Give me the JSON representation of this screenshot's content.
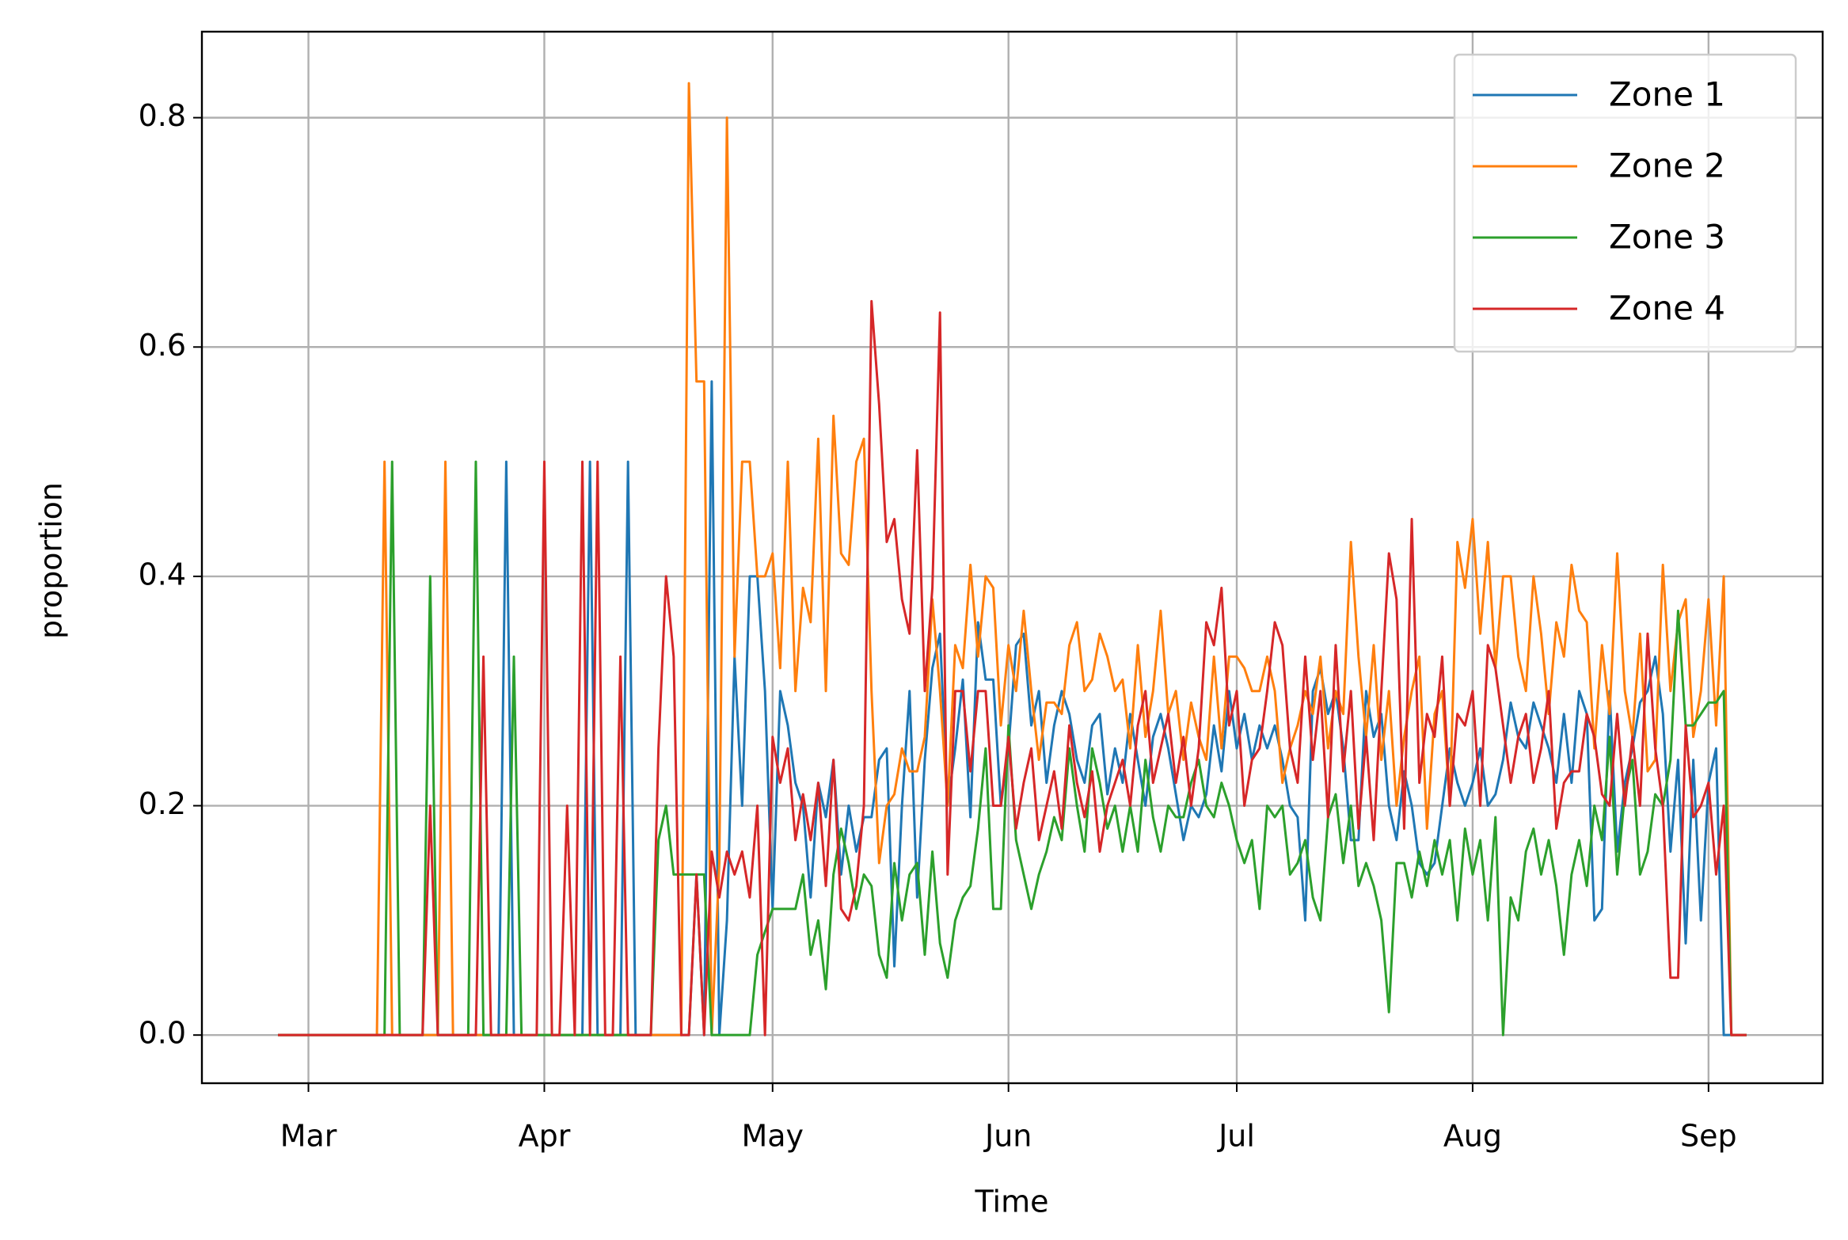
{
  "chart_data": {
    "type": "line",
    "xlabel": "Time",
    "ylabel": "proportion",
    "x": [
      -4,
      -3,
      -2,
      -1,
      0,
      1,
      2,
      3,
      4,
      5,
      6,
      7,
      8,
      9,
      10,
      11,
      12,
      13,
      14,
      15,
      16,
      17,
      18,
      19,
      20,
      21,
      22,
      23,
      24,
      25,
      26,
      27,
      28,
      29,
      30,
      31,
      32,
      33,
      34,
      35,
      36,
      37,
      38,
      39,
      40,
      41,
      42,
      43,
      44,
      45,
      46,
      47,
      48,
      49,
      50,
      51,
      52,
      53,
      54,
      55,
      56,
      57,
      58,
      59,
      60,
      61,
      62,
      63,
      64,
      65,
      66,
      67,
      68,
      69,
      70,
      71,
      72,
      73,
      74,
      75,
      76,
      77,
      78,
      79,
      80,
      81,
      82,
      83,
      84,
      85,
      86,
      87,
      88,
      89,
      90,
      91,
      92,
      93,
      94,
      95,
      96,
      97,
      98,
      99,
      100,
      101,
      102,
      103,
      104,
      105,
      106,
      107,
      108,
      109,
      110,
      111,
      112,
      113,
      114,
      115,
      116,
      117,
      118,
      119,
      120,
      121,
      122,
      123,
      124,
      125,
      126,
      127,
      128,
      129,
      130,
      131,
      132,
      133,
      134,
      135,
      136,
      137,
      138,
      139,
      140,
      141,
      142,
      143,
      144,
      145,
      146,
      147,
      148,
      149,
      150,
      151,
      152,
      153,
      154,
      155,
      156,
      157,
      158,
      159,
      160,
      161,
      162,
      163,
      164,
      165,
      166,
      167,
      168,
      169,
      170,
      171,
      172,
      173,
      174,
      175,
      176,
      177,
      178,
      179,
      180,
      181,
      182,
      183,
      184,
      185,
      186,
      187,
      188,
      189
    ],
    "series": [
      {
        "name": "Zone 1",
        "color": "#1f77b4",
        "values": [
          0,
          0,
          0,
          0,
          0,
          0,
          0,
          0,
          0,
          0,
          0,
          0,
          0,
          0,
          0,
          0,
          0,
          0,
          0,
          0,
          0,
          0,
          0,
          0,
          0,
          0,
          0,
          0,
          0,
          0,
          0.5,
          0,
          0,
          0,
          0,
          0,
          0,
          0,
          0,
          0,
          0,
          0.5,
          0,
          0,
          0,
          0,
          0.5,
          0,
          0,
          0,
          0,
          0,
          0,
          0,
          0,
          0.14,
          0,
          0.57,
          0,
          0.1,
          0.33,
          0.2,
          0.4,
          0.4,
          0.3,
          0.11,
          0.3,
          0.27,
          0.22,
          0.2,
          0.12,
          0.22,
          0.19,
          0.24,
          0.14,
          0.2,
          0.16,
          0.19,
          0.19,
          0.24,
          0.25,
          0.06,
          0.2,
          0.3,
          0.12,
          0.24,
          0.32,
          0.35,
          0.2,
          0.25,
          0.31,
          0.19,
          0.36,
          0.31,
          0.31,
          0.2,
          0.25,
          0.34,
          0.35,
          0.27,
          0.3,
          0.22,
          0.27,
          0.3,
          0.28,
          0.24,
          0.22,
          0.27,
          0.28,
          0.21,
          0.25,
          0.22,
          0.28,
          0.24,
          0.2,
          0.26,
          0.28,
          0.25,
          0.21,
          0.17,
          0.2,
          0.19,
          0.21,
          0.27,
          0.23,
          0.3,
          0.25,
          0.28,
          0.24,
          0.27,
          0.25,
          0.27,
          0.24,
          0.2,
          0.19,
          0.1,
          0.3,
          0.32,
          0.28,
          0.3,
          0.25,
          0.17,
          0.17,
          0.3,
          0.26,
          0.28,
          0.2,
          0.17,
          0.23,
          0.2,
          0.15,
          0.14,
          0.15,
          0.2,
          0.25,
          0.22,
          0.2,
          0.22,
          0.25,
          0.2,
          0.21,
          0.24,
          0.29,
          0.26,
          0.25,
          0.29,
          0.27,
          0.25,
          0.22,
          0.28,
          0.22,
          0.3,
          0.28,
          0.1,
          0.11,
          0.3,
          0.16,
          0.22,
          0.25,
          0.29,
          0.3,
          0.33,
          0.28,
          0.16,
          0.24,
          0.08,
          0.24,
          0.1,
          0.22,
          0.25,
          0,
          0,
          0,
          0
        ]
      },
      {
        "name": "Zone 2",
        "color": "#ff7f0e",
        "values": [
          0,
          0,
          0,
          0,
          0,
          0,
          0,
          0,
          0,
          0,
          0,
          0,
          0,
          0,
          0.5,
          0,
          0,
          0,
          0,
          0,
          0,
          0,
          0.5,
          0,
          0,
          0,
          0,
          0,
          0,
          0,
          0,
          0,
          0,
          0,
          0,
          0,
          0,
          0,
          0,
          0,
          0,
          0,
          0,
          0,
          0,
          0,
          0,
          0,
          0,
          0,
          0,
          0,
          0,
          0,
          0.83,
          0.57,
          0.57,
          0,
          0.15,
          0.8,
          0.33,
          0.5,
          0.5,
          0.4,
          0.4,
          0.42,
          0.32,
          0.5,
          0.3,
          0.39,
          0.36,
          0.52,
          0.3,
          0.54,
          0.42,
          0.41,
          0.5,
          0.52,
          0.3,
          0.15,
          0.2,
          0.21,
          0.25,
          0.23,
          0.23,
          0.26,
          0.38,
          0.3,
          0.2,
          0.34,
          0.32,
          0.41,
          0.33,
          0.4,
          0.39,
          0.27,
          0.34,
          0.3,
          0.37,
          0.3,
          0.24,
          0.29,
          0.29,
          0.28,
          0.34,
          0.36,
          0.3,
          0.31,
          0.35,
          0.33,
          0.3,
          0.31,
          0.25,
          0.34,
          0.26,
          0.3,
          0.37,
          0.28,
          0.3,
          0.24,
          0.29,
          0.26,
          0.24,
          0.33,
          0.25,
          0.33,
          0.33,
          0.32,
          0.3,
          0.3,
          0.33,
          0.3,
          0.22,
          0.25,
          0.27,
          0.3,
          0.28,
          0.33,
          0.25,
          0.3,
          0.28,
          0.43,
          0.33,
          0.26,
          0.34,
          0.24,
          0.3,
          0.2,
          0.26,
          0.3,
          0.33,
          0.18,
          0.28,
          0.3,
          0.2,
          0.43,
          0.39,
          0.45,
          0.35,
          0.43,
          0.32,
          0.4,
          0.4,
          0.33,
          0.3,
          0.4,
          0.35,
          0.28,
          0.36,
          0.33,
          0.41,
          0.37,
          0.36,
          0.25,
          0.34,
          0.28,
          0.42,
          0.3,
          0.26,
          0.35,
          0.23,
          0.24,
          0.41,
          0.3,
          0.36,
          0.38,
          0.26,
          0.3,
          0.38,
          0.27,
          0.4,
          0,
          0,
          0
        ]
      },
      {
        "name": "Zone 3",
        "color": "#2ca02c",
        "values": [
          0,
          0,
          0,
          0,
          0,
          0,
          0,
          0,
          0,
          0,
          0,
          0,
          0,
          0,
          0,
          0.5,
          0,
          0,
          0,
          0,
          0.4,
          0,
          0,
          0,
          0,
          0,
          0.5,
          0,
          0,
          0,
          0,
          0.33,
          0,
          0,
          0,
          0,
          0,
          0,
          0,
          0,
          0,
          0,
          0,
          0,
          0,
          0,
          0,
          0,
          0,
          0,
          0.17,
          0.2,
          0.14,
          0.14,
          0.14,
          0.14,
          0.14,
          0,
          0,
          0,
          0,
          0,
          0,
          0.07,
          0.09,
          0.11,
          0.11,
          0.11,
          0.11,
          0.14,
          0.07,
          0.1,
          0.04,
          0.14,
          0.18,
          0.15,
          0.11,
          0.14,
          0.13,
          0.07,
          0.05,
          0.15,
          0.1,
          0.14,
          0.15,
          0.07,
          0.16,
          0.08,
          0.05,
          0.1,
          0.12,
          0.13,
          0.18,
          0.25,
          0.11,
          0.11,
          0.27,
          0.17,
          0.14,
          0.11,
          0.14,
          0.16,
          0.19,
          0.17,
          0.25,
          0.2,
          0.16,
          0.25,
          0.22,
          0.18,
          0.2,
          0.16,
          0.2,
          0.16,
          0.24,
          0.19,
          0.16,
          0.2,
          0.19,
          0.19,
          0.22,
          0.24,
          0.2,
          0.19,
          0.22,
          0.2,
          0.17,
          0.15,
          0.17,
          0.11,
          0.2,
          0.19,
          0.2,
          0.14,
          0.15,
          0.17,
          0.12,
          0.1,
          0.19,
          0.21,
          0.15,
          0.2,
          0.13,
          0.15,
          0.13,
          0.1,
          0.02,
          0.15,
          0.15,
          0.12,
          0.16,
          0.13,
          0.17,
          0.14,
          0.17,
          0.1,
          0.18,
          0.14,
          0.17,
          0.1,
          0.19,
          0,
          0.12,
          0.1,
          0.16,
          0.18,
          0.14,
          0.17,
          0.13,
          0.07,
          0.14,
          0.17,
          0.13,
          0.2,
          0.17,
          0.26,
          0.14,
          0.21,
          0.24,
          0.14,
          0.16,
          0.21,
          0.2,
          0.24,
          0.37,
          0.27,
          0.27,
          0.28,
          0.29,
          0.29,
          0.3,
          0,
          0,
          0
        ]
      },
      {
        "name": "Zone 4",
        "color": "#d62728",
        "values": [
          0,
          0,
          0,
          0,
          0,
          0,
          0,
          0,
          0,
          0,
          0,
          0,
          0,
          0,
          0,
          0,
          0,
          0,
          0,
          0,
          0.2,
          0,
          0,
          0,
          0,
          0,
          0,
          0.33,
          0,
          0,
          0,
          0,
          0,
          0,
          0,
          0.5,
          0,
          0,
          0.2,
          0,
          0.5,
          0,
          0.5,
          0,
          0,
          0.33,
          0,
          0,
          0,
          0,
          0.25,
          0.4,
          0.33,
          0,
          0,
          0.14,
          0,
          0.16,
          0.12,
          0.16,
          0.14,
          0.16,
          0.12,
          0.2,
          0,
          0.26,
          0.22,
          0.25,
          0.17,
          0.21,
          0.17,
          0.22,
          0.13,
          0.24,
          0.11,
          0.1,
          0.13,
          0.2,
          0.64,
          0.55,
          0.43,
          0.45,
          0.38,
          0.35,
          0.51,
          0.3,
          0.39,
          0.63,
          0.14,
          0.3,
          0.3,
          0.23,
          0.3,
          0.3,
          0.2,
          0.2,
          0.26,
          0.18,
          0.22,
          0.25,
          0.17,
          0.2,
          0.23,
          0.18,
          0.27,
          0.22,
          0.19,
          0.23,
          0.16,
          0.2,
          0.22,
          0.24,
          0.2,
          0.27,
          0.3,
          0.22,
          0.25,
          0.28,
          0.22,
          0.26,
          0.2,
          0.25,
          0.36,
          0.34,
          0.39,
          0.27,
          0.3,
          0.2,
          0.24,
          0.25,
          0.3,
          0.36,
          0.34,
          0.25,
          0.22,
          0.33,
          0.24,
          0.3,
          0.19,
          0.34,
          0.23,
          0.3,
          0.18,
          0.26,
          0.17,
          0.3,
          0.42,
          0.38,
          0.18,
          0.45,
          0.22,
          0.28,
          0.26,
          0.33,
          0.2,
          0.28,
          0.27,
          0.3,
          0.2,
          0.34,
          0.32,
          0.27,
          0.22,
          0.26,
          0.28,
          0.22,
          0.25,
          0.3,
          0.18,
          0.22,
          0.23,
          0.23,
          0.28,
          0.26,
          0.21,
          0.2,
          0.28,
          0.2,
          0.26,
          0.2,
          0.35,
          0.25,
          0.2,
          0.05,
          0.05,
          0.27,
          0.19,
          0.2,
          0.22,
          0.14,
          0.2,
          0,
          0,
          0
        ]
      }
    ],
    "xlim": [
      -14,
      199
    ],
    "xticks": [
      {
        "value": 0,
        "label": "Mar"
      },
      {
        "value": 31,
        "label": "Apr"
      },
      {
        "value": 61,
        "label": "May"
      },
      {
        "value": 92,
        "label": "Jun"
      },
      {
        "value": 122,
        "label": "Jul"
      },
      {
        "value": 153,
        "label": "Aug"
      },
      {
        "value": 184,
        "label": "Sep"
      }
    ],
    "ylim": [
      -0.042,
      0.875
    ],
    "yticks": [
      {
        "value": 0,
        "label": "0.0"
      },
      0.2,
      0.4,
      0.6,
      0.8
    ],
    "grid": true,
    "legend": "upper right"
  }
}
